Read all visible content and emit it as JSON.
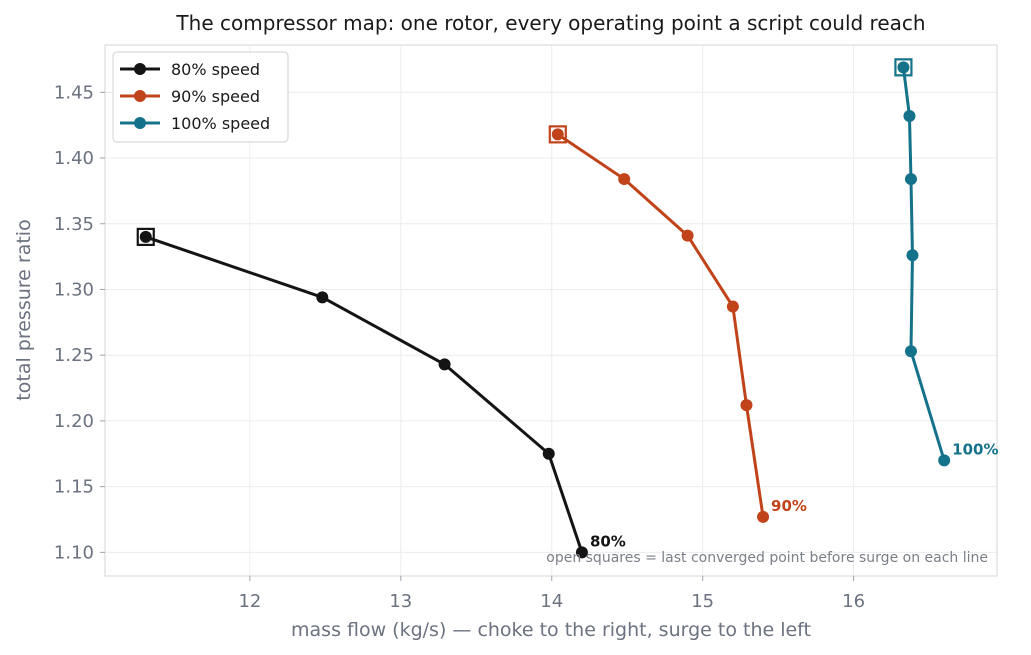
{
  "chart_data": {
    "type": "line",
    "title": "The compressor map: one rotor, every operating point a script could reach",
    "xlabel": "mass flow (kg/s)  —  choke to the right, surge to the left",
    "ylabel": "total pressure ratio",
    "xlim": [
      11.04,
      16.95
    ],
    "ylim": [
      1.082,
      1.486
    ],
    "xticks": [
      12,
      13,
      14,
      15,
      16
    ],
    "yticks": [
      1.1,
      1.15,
      1.2,
      1.25,
      1.3,
      1.35,
      1.4,
      1.45
    ],
    "grid": true,
    "legend_position": "top-left",
    "annotation": "open squares = last converged point before surge on each line",
    "series": [
      {
        "name": "80% speed",
        "end_label": "80%",
        "color": "#141414",
        "x": [
          11.31,
          12.48,
          13.29,
          13.98,
          14.2
        ],
        "y": [
          1.34,
          1.294,
          1.243,
          1.175,
          1.1
        ],
        "surge_point": {
          "x": 11.31,
          "y": 1.34
        }
      },
      {
        "name": "90% speed",
        "end_label": "90%",
        "color": "#c0431a",
        "x": [
          14.04,
          14.48,
          14.9,
          15.2,
          15.29,
          15.4
        ],
        "y": [
          1.418,
          1.384,
          1.341,
          1.287,
          1.212,
          1.127
        ],
        "surge_point": {
          "x": 14.04,
          "y": 1.418
        }
      },
      {
        "name": "100% speed",
        "end_label": "100%",
        "color": "#14728a",
        "x": [
          16.33,
          16.37,
          16.38,
          16.39,
          16.38,
          16.6
        ],
        "y": [
          1.469,
          1.432,
          1.384,
          1.326,
          1.253,
          1.17
        ],
        "surge_point": {
          "x": 16.33,
          "y": 1.469
        }
      }
    ]
  }
}
